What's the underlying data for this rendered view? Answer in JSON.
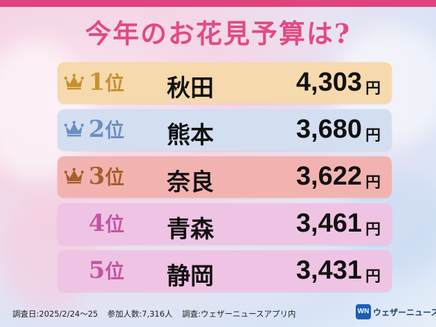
{
  "title": "今年のお花見予算は?",
  "chart_data": {
    "type": "table",
    "title": "今年のお花見予算は?",
    "rows": [
      {
        "rank_num": "1",
        "rank_suffix": "位",
        "prefecture": "秋田",
        "amount": "4,303",
        "unit": "円",
        "value": 4303,
        "crown": true,
        "crown_color": "#c9912c",
        "rank_color": "#c9912c",
        "bg": "#f6d9ad"
      },
      {
        "rank_num": "2",
        "rank_suffix": "位",
        "prefecture": "熊本",
        "amount": "3,680",
        "unit": "円",
        "value": 3680,
        "crown": true,
        "crown_color": "#6d8fc0",
        "rank_color": "#6d8fc0",
        "bg": "#d3def1"
      },
      {
        "rank_num": "3",
        "rank_suffix": "位",
        "prefecture": "奈良",
        "amount": "3,622",
        "unit": "円",
        "value": 3622,
        "crown": true,
        "crown_color": "#a85d2c",
        "rank_color": "#a85d2c",
        "bg": "#f2b3b0"
      },
      {
        "rank_num": "4",
        "rank_suffix": "位",
        "prefecture": "青森",
        "amount": "3,461",
        "unit": "円",
        "value": 3461,
        "crown": false,
        "rank_color": "#c454a4",
        "bg": "#efc3e3"
      },
      {
        "rank_num": "5",
        "rank_suffix": "位",
        "prefecture": "静岡",
        "amount": "3,431",
        "unit": "円",
        "value": 3431,
        "crown": false,
        "rank_color": "#c454a4",
        "bg": "#efc3e3"
      }
    ]
  },
  "footer": {
    "survey_date": "調査日:2025/2/24〜25",
    "participants": "参加人数:7,316人",
    "source": "調査:ウェザーニュースアプリ内"
  },
  "logo": {
    "mark": "WN",
    "text": "ウェザーニュース"
  },
  "colors": {
    "accent": "#e0437e",
    "title": "#e34a83"
  }
}
